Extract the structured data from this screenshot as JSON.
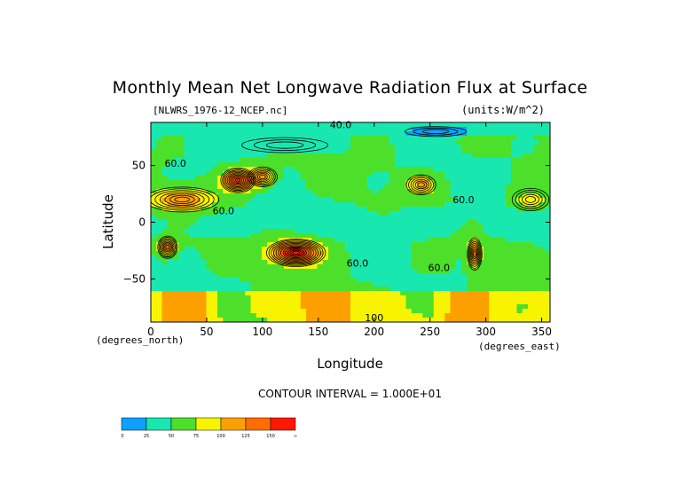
{
  "chart_data": {
    "type": "heatmap",
    "title": "Monthly Mean Net Longwave Radiation Flux at Surface",
    "file_label": "[NLWRS_1976-12_NCEP.nc]",
    "units_label": "(units:W/m^2)",
    "xlabel": "Longitude",
    "ylabel": "Latitude",
    "xlabel_units": "(degrees_east)",
    "ylabel_units": "(degrees_north)",
    "contour_interval_text": "CONTOUR INTERVAL = 1.000E+01",
    "xlim": [
      0,
      357.5
    ],
    "ylim": [
      -88,
      88
    ],
    "x_ticks": [
      0,
      50,
      100,
      150,
      200,
      250,
      300,
      350
    ],
    "x_tick_labels": [
      "0",
      "50",
      "100",
      "150",
      "200",
      "250",
      "300",
      "350"
    ],
    "y_ticks": [
      50,
      0,
      -50
    ],
    "y_tick_labels": [
      "50",
      "0",
      "−50"
    ],
    "colorbar": {
      "colors": [
        "#0ea0ff",
        "#18e8b0",
        "#4ce02a",
        "#f8f400",
        "#fca000",
        "#ff6c00",
        "#ff1800"
      ],
      "tick_labels": [
        "0",
        "25",
        "50",
        "75",
        "100",
        "125",
        "150",
        "∞"
      ],
      "boundaries": [
        0,
        25,
        50,
        75,
        100,
        125,
        150
      ]
    },
    "contour_labels": [
      {
        "text": "40.0",
        "lon": 170,
        "lat": 86
      },
      {
        "text": "60.0",
        "lon": 22,
        "lat": 52
      },
      {
        "text": "60.0",
        "lon": 65,
        "lat": 10
      },
      {
        "text": "60.0",
        "lon": 280,
        "lat": 20
      },
      {
        "text": "60.0",
        "lon": 185,
        "lat": -36
      },
      {
        "text": "60.0",
        "lon": 258,
        "lat": -40
      },
      {
        "text": "100",
        "lon": 200,
        "lat": -84
      }
    ],
    "features": [
      {
        "lon": 28,
        "lat": 20,
        "value": 115,
        "rx": 30,
        "ry": 10
      },
      {
        "lon": 15,
        "lat": -22,
        "value": 125,
        "rx": 8,
        "ry": 9
      },
      {
        "lon": 78,
        "lat": 37,
        "value": 150,
        "rx": 14,
        "ry": 10
      },
      {
        "lon": 100,
        "lat": 40,
        "value": 120,
        "rx": 12,
        "ry": 8
      },
      {
        "lon": 130,
        "lat": -27,
        "value": 165,
        "rx": 24,
        "ry": 11
      },
      {
        "lon": 242,
        "lat": 33,
        "value": 110,
        "rx": 12,
        "ry": 8
      },
      {
        "lon": 290,
        "lat": -28,
        "value": 125,
        "rx": 6,
        "ry": 13
      },
      {
        "lon": 340,
        "lat": 20,
        "value": 95,
        "rx": 15,
        "ry": 9
      },
      {
        "lon": 120,
        "lat": 68,
        "value": 25,
        "rx": 35,
        "ry": 6
      },
      {
        "lon": 255,
        "lat": 80,
        "value": 20,
        "rx": 25,
        "ry": 4
      }
    ]
  }
}
